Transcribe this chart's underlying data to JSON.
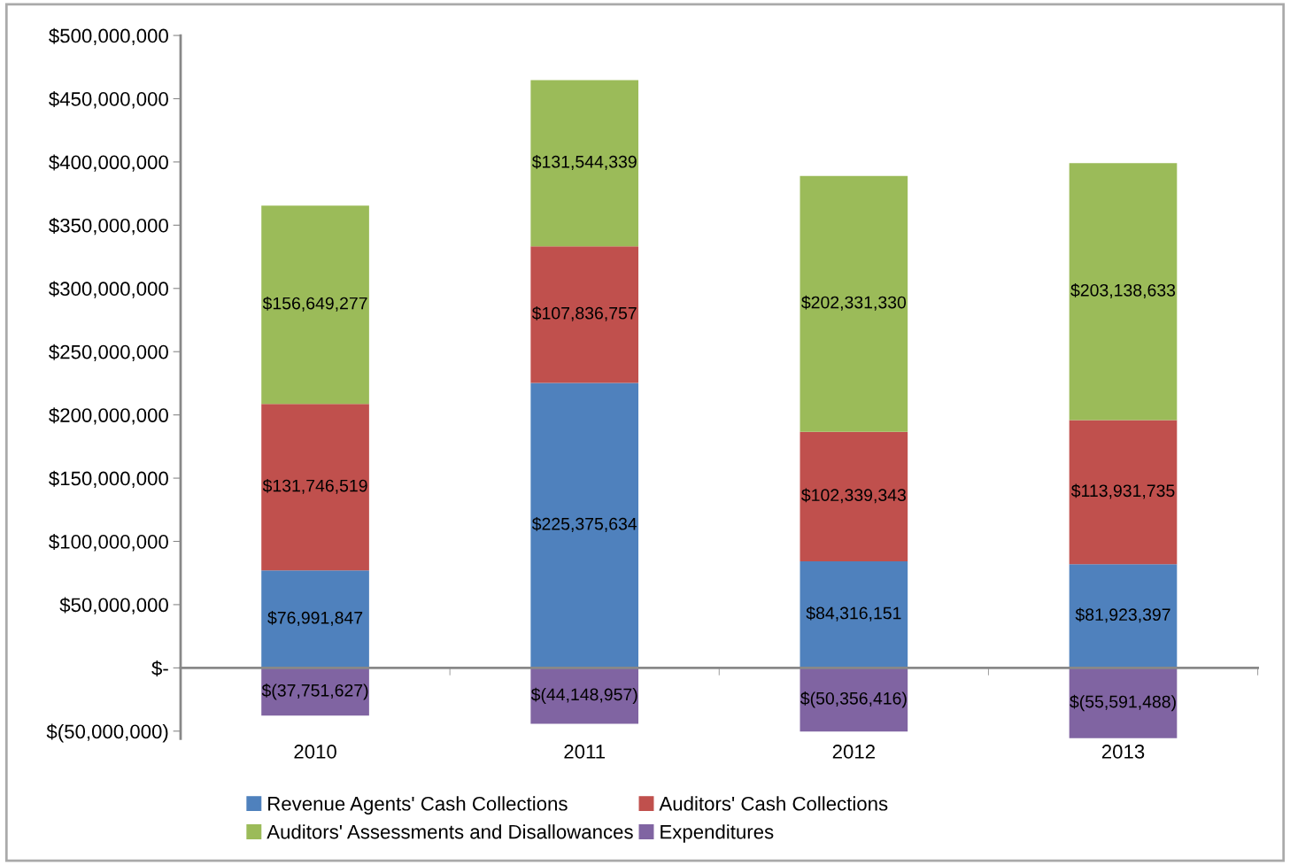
{
  "chart_data": {
    "type": "bar",
    "stacked": true,
    "categories": [
      "2010",
      "2011",
      "2012",
      "2013"
    ],
    "series": [
      {
        "name": "Revenue Agents' Cash Collections",
        "color": "#4f81bd",
        "values": [
          76991847,
          225375634,
          84316151,
          81923397
        ],
        "value_labels": [
          "$76,991,847",
          "$225,375,634",
          "$84,316,151",
          "$81,923,397"
        ]
      },
      {
        "name": "Auditors' Cash Collections",
        "color": "#c0504d",
        "values": [
          131746519,
          107836757,
          102339343,
          113931735
        ],
        "value_labels": [
          "$131,746,519",
          "$107,836,757",
          "$102,339,343",
          "$113,931,735"
        ]
      },
      {
        "name": "Auditors' Assessments and Disallowances",
        "color": "#9bbb59",
        "values": [
          156649277,
          131544339,
          202331330,
          203138633
        ],
        "value_labels": [
          "$156,649,277",
          "$131,544,339",
          "$202,331,330",
          "$203,138,633"
        ]
      },
      {
        "name": "Expenditures",
        "color": "#8064a2",
        "values": [
          -37751627,
          -44148957,
          -50356416,
          -55591488
        ],
        "value_labels": [
          "$(37,751,627)",
          "$(44,148,957)",
          "$(50,356,416)",
          "$(55,591,488)"
        ]
      }
    ],
    "ylim": [
      -56000000,
      500000000
    ],
    "yticks": [
      {
        "value": -50000000,
        "label": "$(50,000,000)"
      },
      {
        "value": 0,
        "label": "$-"
      },
      {
        "value": 50000000,
        "label": "$50,000,000"
      },
      {
        "value": 100000000,
        "label": "$100,000,000"
      },
      {
        "value": 150000000,
        "label": "$150,000,000"
      },
      {
        "value": 200000000,
        "label": "$200,000,000"
      },
      {
        "value": 250000000,
        "label": "$250,000,000"
      },
      {
        "value": 300000000,
        "label": "$300,000,000"
      },
      {
        "value": 350000000,
        "label": "$350,000,000"
      },
      {
        "value": 400000000,
        "label": "$400,000,000"
      },
      {
        "value": 450000000,
        "label": "$450,000,000"
      },
      {
        "value": 500000000,
        "label": "$500,000,000"
      }
    ],
    "legend": "bottom"
  }
}
